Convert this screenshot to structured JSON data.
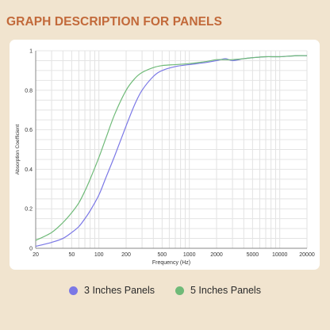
{
  "page": {
    "title": "GRAPH DESCRIPTION FOR PANELS",
    "title_color": "#c2693a",
    "background": "#f1e4cf"
  },
  "chart_data": {
    "type": "line",
    "xscale": "log",
    "xlabel": "Frequency (Hz)",
    "ylabel": "Absorption Coefficient",
    "xlim": [
      20,
      20000
    ],
    "ylim": [
      0,
      1
    ],
    "x_ticks": [
      20,
      50,
      100,
      200,
      500,
      1000,
      2000,
      5000,
      10000,
      20000
    ],
    "y_ticks": [
      0,
      0.2,
      0.4,
      0.6,
      0.8,
      1
    ],
    "y_tick_labels": [
      "0",
      "0.2",
      "0.4",
      "0.6",
      "0.8",
      "1"
    ],
    "grid": true,
    "legend_position": "bottom",
    "series": [
      {
        "name": "3 Inches Panels",
        "color": "#7b78e6",
        "x": [
          20,
          30,
          40,
          50,
          60,
          70,
          80,
          100,
          120,
          150,
          200,
          250,
          300,
          400,
          500,
          700,
          1000,
          1500,
          2000,
          2500,
          3000,
          4000,
          5000,
          7000,
          10000,
          15000,
          20000
        ],
        "y": [
          0.01,
          0.03,
          0.05,
          0.08,
          0.11,
          0.15,
          0.19,
          0.27,
          0.36,
          0.47,
          0.62,
          0.73,
          0.8,
          0.87,
          0.9,
          0.92,
          0.93,
          0.94,
          0.95,
          0.96,
          0.95,
          0.96,
          0.965,
          0.97,
          0.97,
          0.975,
          0.975
        ]
      },
      {
        "name": "5 Inches Panels",
        "color": "#6fba78",
        "x": [
          20,
          30,
          40,
          50,
          60,
          70,
          80,
          100,
          120,
          150,
          200,
          250,
          300,
          400,
          500,
          700,
          1000,
          1500,
          2000,
          2500,
          3000,
          4000,
          5000,
          7000,
          10000,
          15000,
          20000
        ],
        "y": [
          0.04,
          0.08,
          0.13,
          0.18,
          0.23,
          0.29,
          0.35,
          0.46,
          0.56,
          0.68,
          0.8,
          0.86,
          0.89,
          0.915,
          0.925,
          0.93,
          0.935,
          0.945,
          0.955,
          0.955,
          0.955,
          0.96,
          0.965,
          0.97,
          0.97,
          0.975,
          0.975
        ]
      }
    ]
  }
}
